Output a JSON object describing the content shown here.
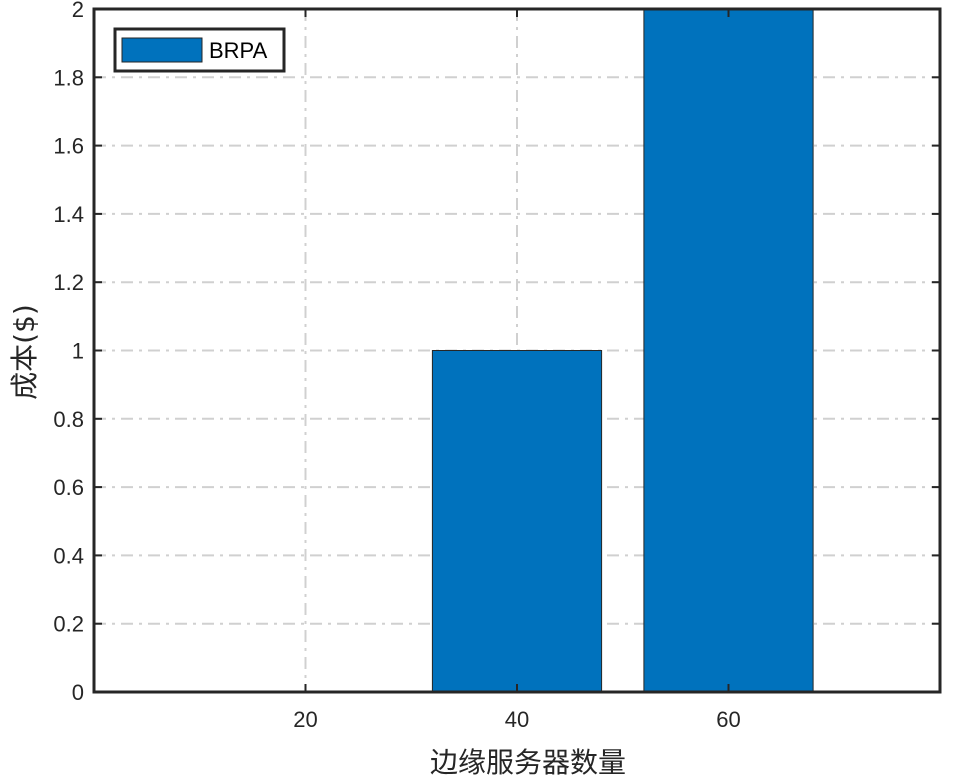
{
  "chart_data": {
    "type": "bar",
    "x_ticks": [
      20,
      40,
      60
    ],
    "series": [
      {
        "name": "BRPA",
        "color": "#0072BD",
        "points": [
          {
            "x": 40,
            "y": 1
          },
          {
            "x": 60,
            "y": 2
          }
        ]
      }
    ],
    "xlabel": "边缘服务器数量",
    "ylabel": "成本($)",
    "xlim": [
      0,
      80
    ],
    "ylim": [
      0,
      2
    ],
    "y_ticks": [
      0,
      0.2,
      0.4,
      0.6,
      0.8,
      1,
      1.2,
      1.4,
      1.6,
      1.8,
      2
    ],
    "y_tick_labels": [
      "0",
      "0.2",
      "0.4",
      "0.6",
      "0.8",
      "1",
      "1.2",
      "1.4",
      "1.6",
      "1.8",
      "2"
    ],
    "bar_width": 16,
    "grid": true,
    "legend_position": "top-left"
  }
}
